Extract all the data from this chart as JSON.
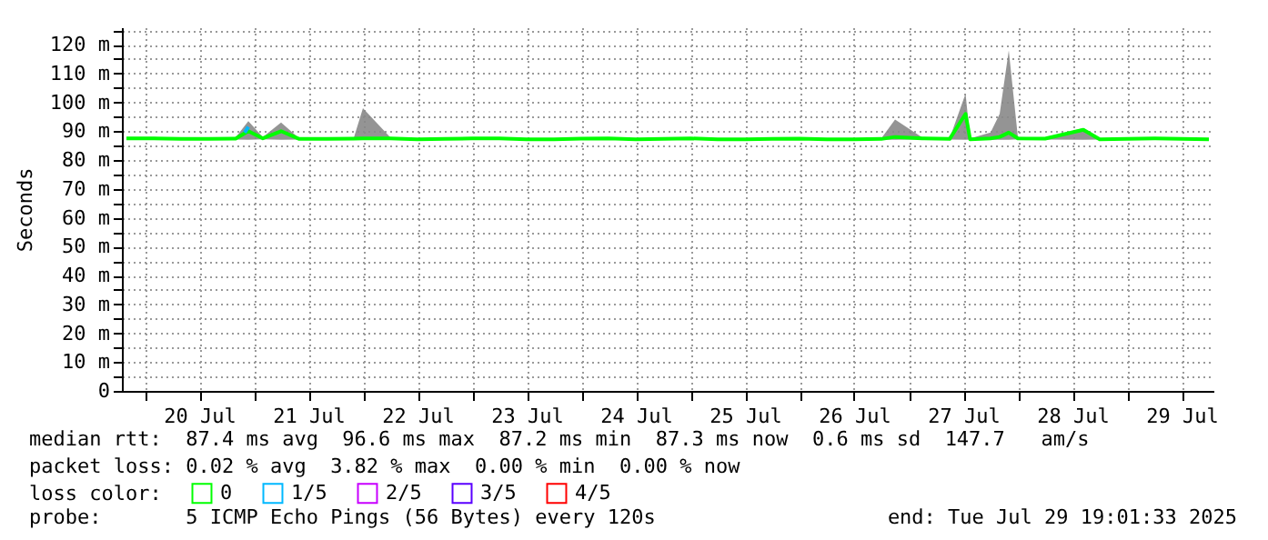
{
  "chart_data": {
    "type": "line",
    "ylabel": "Seconds",
    "legend_title": "loss color:",
    "legend": "bottom",
    "grid": true,
    "line_style": "solid",
    "xlim": [
      "2025-07-19T19:00",
      "2025-07-29T19:00"
    ],
    "xticks": [
      {
        "value": "2025-07-20T00:00",
        "label": null
      },
      {
        "value": "2025-07-20T12:00",
        "label": "20 Jul"
      },
      {
        "value": "2025-07-21T00:00",
        "label": null
      },
      {
        "value": "2025-07-21T12:00",
        "label": "21 Jul"
      },
      {
        "value": "2025-07-22T00:00",
        "label": null
      },
      {
        "value": "2025-07-22T12:00",
        "label": "22 Jul"
      },
      {
        "value": "2025-07-23T00:00",
        "label": null
      },
      {
        "value": "2025-07-23T12:00",
        "label": "23 Jul"
      },
      {
        "value": "2025-07-24T00:00",
        "label": null
      },
      {
        "value": "2025-07-24T12:00",
        "label": "24 Jul"
      },
      {
        "value": "2025-07-25T00:00",
        "label": null
      },
      {
        "value": "2025-07-25T12:00",
        "label": "25 Jul"
      },
      {
        "value": "2025-07-26T00:00",
        "label": null
      },
      {
        "value": "2025-07-26T12:00",
        "label": "26 Jul"
      },
      {
        "value": "2025-07-27T00:00",
        "label": null
      },
      {
        "value": "2025-07-27T12:00",
        "label": "27 Jul"
      },
      {
        "value": "2025-07-28T00:00",
        "label": null
      },
      {
        "value": "2025-07-28T12:00",
        "label": "28 Jul"
      },
      {
        "value": "2025-07-29T00:00",
        "label": null
      },
      {
        "value": "2025-07-29T12:00",
        "label": "29 Jul"
      }
    ],
    "ylim": [
      0,
      126
    ],
    "yticks": [
      0,
      {
        "value": 5,
        "label": null
      },
      {
        "value": 10,
        "label": "10 m"
      },
      {
        "value": 15,
        "label": null
      },
      {
        "value": 20,
        "label": "20 m"
      },
      {
        "value": 25,
        "label": null
      },
      {
        "value": 30,
        "label": "30 m"
      },
      {
        "value": 35,
        "label": null
      },
      {
        "value": 40,
        "label": "40 m"
      },
      {
        "value": 45,
        "label": null
      },
      {
        "value": 50,
        "label": "50 m"
      },
      {
        "value": 55,
        "label": null
      },
      {
        "value": 60,
        "label": "60 m"
      },
      {
        "value": 65,
        "label": null
      },
      {
        "value": 70,
        "label": "70 m"
      },
      {
        "value": 75,
        "label": null
      },
      {
        "value": 80,
        "label": "80 m"
      },
      {
        "value": 85,
        "label": null
      },
      {
        "value": 90,
        "label": "90 m"
      },
      {
        "value": 95,
        "label": null
      },
      {
        "value": 100,
        "label": "100 m"
      },
      {
        "value": 105,
        "label": null
      },
      {
        "value": 110,
        "label": "110 m"
      },
      {
        "value": 115,
        "label": null
      },
      {
        "value": 120,
        "label": "120 m"
      },
      {
        "value": 125,
        "label": null
      }
    ],
    "x": [
      "2025-07-19T20:00",
      "2025-07-20T02:00",
      "2025-07-20T08:00",
      "2025-07-20T14:00",
      "2025-07-20T20:00",
      "2025-07-20T22:48",
      "2025-07-21T02:00",
      "2025-07-21T06:00",
      "2025-07-21T10:00",
      "2025-07-21T16:00",
      "2025-07-21T22:00",
      "2025-07-22T00:00",
      "2025-07-22T06:00",
      "2025-07-22T12:00",
      "2025-07-22T18:00",
      "2025-07-23T00:00",
      "2025-07-23T06:00",
      "2025-07-23T12:00",
      "2025-07-23T18:00",
      "2025-07-24T00:00",
      "2025-07-24T06:00",
      "2025-07-24T12:00",
      "2025-07-24T18:00",
      "2025-07-25T00:00",
      "2025-07-25T06:00",
      "2025-07-25T12:00",
      "2025-07-25T18:00",
      "2025-07-26T00:00",
      "2025-07-26T06:00",
      "2025-07-26T12:00",
      "2025-07-26T18:00",
      "2025-07-26T21:00",
      "2025-07-27T03:00",
      "2025-07-27T09:00",
      "2025-07-27T12:30",
      "2025-07-27T13:30",
      "2025-07-27T18:00",
      "2025-07-27T20:00",
      "2025-07-27T22:00",
      "2025-07-28T00:00",
      "2025-07-28T06:00",
      "2025-07-28T14:24",
      "2025-07-28T18:00",
      "2025-07-29T00:00",
      "2025-07-29T06:00",
      "2025-07-29T12:00",
      "2025-07-29T18:00"
    ],
    "series": [
      {
        "name": "0",
        "color": "#00ff00",
        "values": [
          87.5,
          87.5,
          87.3,
          87.3,
          87.4,
          90,
          87.5,
          90,
          87.3,
          87.3,
          87.4,
          87.5,
          87.5,
          87.2,
          87.3,
          87.5,
          87.5,
          87.2,
          87.2,
          87.4,
          87.5,
          87.2,
          87.3,
          87.5,
          87.2,
          87.2,
          87.3,
          87.4,
          87.2,
          87.2,
          87.3,
          88,
          87.5,
          87.3,
          96,
          87.2,
          87.5,
          88,
          89.5,
          87.5,
          87.4,
          90.5,
          87.2,
          87.3,
          87.5,
          87.3,
          87.2
        ],
        "lower": [
          87.2,
          87.2,
          87.1,
          87.1,
          87.1,
          87,
          87.2,
          87,
          87.1,
          87.1,
          87.1,
          87.2,
          87.2,
          87.1,
          87.1,
          87.2,
          87.2,
          87.1,
          87.1,
          87.1,
          87.2,
          87.1,
          87.1,
          87.2,
          87.1,
          87.1,
          87.1,
          87.1,
          87.1,
          87.1,
          87.1,
          87,
          87.2,
          87.1,
          87,
          87.1,
          87,
          87,
          87,
          87.2,
          87.1,
          87,
          87.1,
          87.1,
          87.2,
          87.1,
          87.1
        ],
        "upper": [
          88,
          88,
          87.5,
          87.6,
          87.8,
          93.5,
          88,
          93,
          87.5,
          87.5,
          87.7,
          98,
          87.9,
          87.4,
          87.6,
          87.9,
          87.8,
          87.4,
          87.5,
          87.8,
          87.9,
          87.5,
          87.6,
          87.8,
          87.4,
          87.4,
          87.5,
          87.8,
          87.4,
          87.4,
          87.6,
          94,
          87.8,
          87.5,
          103,
          87.5,
          89.5,
          96,
          118,
          88,
          87.7,
          91,
          87.4,
          87.5,
          87.8,
          87.6,
          87.4
        ]
      },
      {
        "name": "1/5",
        "color": "#00b8ff",
        "x": [
          "2025-07-20T22:00",
          "2025-07-20T22:48"
        ],
        "values": [
          89.5,
          91.5
        ]
      },
      {
        "name": "2/5",
        "color": "#c800ff",
        "values": [
          null,
          null,
          null,
          null,
          null,
          null,
          null,
          null,
          null,
          null,
          null,
          null,
          null,
          null,
          null,
          null,
          null,
          null,
          null,
          null,
          null,
          null,
          null,
          null,
          null,
          null,
          null,
          null,
          null,
          null,
          null,
          null,
          null,
          null,
          null,
          null,
          null,
          null,
          null,
          null,
          null,
          null,
          null,
          null,
          null,
          null,
          null
        ]
      },
      {
        "name": "3/5",
        "color": "#5a00ff",
        "values": [
          null,
          null,
          null,
          null,
          null,
          null,
          null,
          null,
          null,
          null,
          null,
          null,
          null,
          null,
          null,
          null,
          null,
          null,
          null,
          null,
          null,
          null,
          null,
          null,
          null,
          null,
          null,
          null,
          null,
          null,
          null,
          null,
          null,
          null,
          null,
          null,
          null,
          null,
          null,
          null,
          null,
          null,
          null,
          null,
          null,
          null,
          null
        ]
      },
      {
        "name": "4/5",
        "color": "#ff0000",
        "values": [
          null,
          null,
          null,
          null,
          null,
          null,
          null,
          null,
          null,
          null,
          null,
          null,
          null,
          null,
          null,
          null,
          null,
          null,
          null,
          null,
          null,
          null,
          null,
          null,
          null,
          null,
          null,
          null,
          null,
          null,
          null,
          null,
          null,
          null,
          null,
          null,
          null,
          null,
          null,
          null,
          null,
          null,
          null,
          null,
          null,
          null,
          null
        ]
      }
    ],
    "annotations": [
      "median rtt:  87.4 ms avg  96.6 ms max  87.2 ms min  87.3 ms now  0.6 ms sd  147.7   am/s",
      "packet loss: 0.02 % avg  3.82 % max  0.00 % min  0.00 % now",
      "probe:       5 ICMP Echo Pings (56 Bytes) every 120s",
      "end: Tue Jul 29 19:01:33 2025"
    ]
  }
}
